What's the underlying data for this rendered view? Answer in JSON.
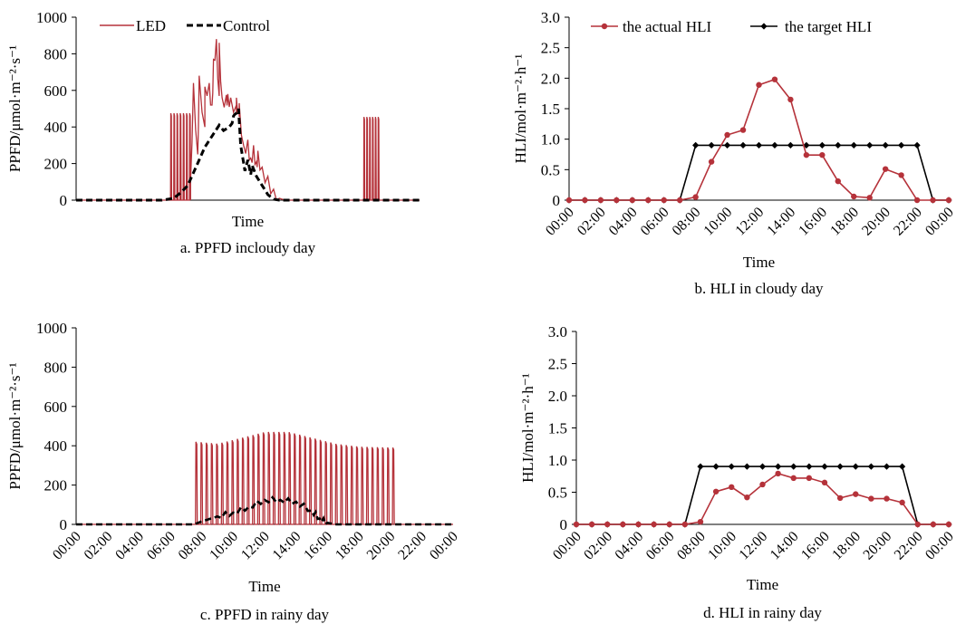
{
  "colors": {
    "led": "#b5323a",
    "control": "#000000",
    "actual": "#b5323a",
    "target": "#000000"
  },
  "chart_data": [
    {
      "id": "a",
      "type": "line",
      "caption": "a. PPFD incloudy day",
      "xlabel": "Time",
      "ylabel": "PPFD/μmol·m⁻²·s⁻¹",
      "ylim": [
        0,
        1000
      ],
      "yticks": [
        "0",
        "200",
        "400",
        "600",
        "800",
        "1000"
      ],
      "xticks": [],
      "x_range_hours": [
        0,
        24
      ],
      "legend": {
        "placement": "top-left",
        "entries": [
          "LED",
          "Control"
        ]
      },
      "series": [
        {
          "name": "LED",
          "style": "solid-red",
          "pulses": {
            "start": 6.6,
            "end": 8.0,
            "period": 0.22,
            "duty": 0.5,
            "top": 475,
            "bottom": 0
          },
          "pulses2": {
            "start": 20.1,
            "end": 21.2,
            "period": 0.2,
            "duty": 0.5,
            "top": 455,
            "bottom": 0
          },
          "values": [
            [
              0,
              0
            ],
            [
              6.0,
              0
            ],
            [
              6.6,
              8
            ],
            [
              7.2,
              20
            ],
            [
              8.0,
              110
            ],
            [
              8.5,
              250
            ],
            [
              9.0,
              400
            ],
            [
              9.5,
              520
            ],
            [
              10.0,
              570
            ],
            [
              10.5,
              575
            ],
            [
              10.8,
              560
            ],
            [
              11.2,
              520
            ],
            [
              11.4,
              500
            ],
            [
              11.7,
              300
            ],
            [
              12.2,
              230
            ],
            [
              12.6,
              210
            ],
            [
              13.0,
              180
            ],
            [
              13.4,
              130
            ],
            [
              13.8,
              60
            ],
            [
              14.2,
              10
            ],
            [
              14.6,
              0
            ],
            [
              24,
              0
            ]
          ],
          "peaks": [
            [
              8.2,
              640
            ],
            [
              8.6,
              680
            ],
            [
              9.0,
              620
            ],
            [
              9.3,
              640
            ],
            [
              9.6,
              770
            ],
            [
              9.8,
              880
            ],
            [
              10.0,
              860
            ],
            [
              10.2,
              560
            ],
            [
              10.6,
              580
            ],
            [
              11.2,
              560
            ],
            [
              11.4,
              530
            ],
            [
              12.0,
              330
            ],
            [
              12.4,
              300
            ],
            [
              12.7,
              270
            ]
          ]
        },
        {
          "name": "Control",
          "style": "dashed-black",
          "values": [
            [
              0,
              0
            ],
            [
              6.0,
              0
            ],
            [
              6.8,
              10
            ],
            [
              7.3,
              40
            ],
            [
              7.8,
              80
            ],
            [
              8.2,
              150
            ],
            [
              8.6,
              220
            ],
            [
              9.0,
              290
            ],
            [
              9.5,
              350
            ],
            [
              10.0,
              410
            ],
            [
              10.3,
              380
            ],
            [
              10.7,
              400
            ],
            [
              11.0,
              460
            ],
            [
              11.3,
              480
            ],
            [
              11.5,
              300
            ],
            [
              11.8,
              160
            ],
            [
              12.2,
              140
            ],
            [
              12.6,
              130
            ],
            [
              13.0,
              80
            ],
            [
              13.4,
              30
            ],
            [
              13.8,
              5
            ],
            [
              14.2,
              0
            ],
            [
              24,
              0
            ]
          ],
          "peaks": [
            [
              10.9,
              420
            ],
            [
              11.1,
              470
            ],
            [
              11.35,
              500
            ],
            [
              12.0,
              220
            ],
            [
              12.3,
              190
            ]
          ]
        }
      ]
    },
    {
      "id": "b",
      "type": "line",
      "caption": "b. HLI in cloudy day",
      "xlabel": "Time",
      "ylabel": "HLI/mol·m⁻²·h⁻¹",
      "ylim": [
        0,
        3.0
      ],
      "yticks": [
        "0",
        "0.5",
        "1.0",
        "1.5",
        "2.0",
        "2.5",
        "3.0"
      ],
      "xticks": [
        "00:00",
        "02:00",
        "04:00",
        "06:00",
        "08:00",
        "10:00",
        "12:00",
        "14:00",
        "16:00",
        "18:00",
        "20:00",
        "22:00",
        "00:00"
      ],
      "legend": {
        "placement": "top",
        "entries": [
          "the actual HLI",
          "the target HLI"
        ]
      },
      "series": [
        {
          "name": "the actual HLI",
          "values": [
            0,
            0,
            0,
            0,
            0,
            0,
            0,
            0,
            0.05,
            0.63,
            1.07,
            1.15,
            1.89,
            1.98,
            1.65,
            0.74,
            0.74,
            0.31,
            0.06,
            0.04,
            0.51,
            0.41,
            0,
            0,
            0
          ]
        },
        {
          "name": "the target HLI",
          "values": [
            0,
            0,
            0,
            0,
            0,
            0,
            0,
            0,
            0.9,
            0.9,
            0.9,
            0.9,
            0.9,
            0.9,
            0.9,
            0.9,
            0.9,
            0.9,
            0.9,
            0.9,
            0.9,
            0.9,
            0.9,
            0,
            0
          ]
        }
      ]
    },
    {
      "id": "c",
      "type": "line",
      "caption": "c. PPFD in rainy day",
      "xlabel": "Time",
      "ylabel": "PPFD/μmol·m⁻²·s⁻¹",
      "ylim": [
        0,
        1000
      ],
      "yticks": [
        "0",
        "200",
        "400",
        "600",
        "800",
        "1000"
      ],
      "xticks": [
        "00:00",
        "02:00",
        "04:00",
        "06:00",
        "08:00",
        "10:00",
        "12:00",
        "14:00",
        "16:00",
        "18:00",
        "20:00",
        "22:00",
        "00:00"
      ],
      "x_range_hours": [
        0,
        24
      ],
      "series": [
        {
          "name": "LED",
          "style": "solid-red",
          "pulses": {
            "start": 7.6,
            "end": 20.4,
            "period": 0.33,
            "duty": 0.5,
            "bottom": 0,
            "top_profile": [
              [
                7.6,
                420
              ],
              [
                9.0,
                410
              ],
              [
                10.5,
                440
              ],
              [
                12.0,
                470
              ],
              [
                13.5,
                470
              ],
              [
                15.0,
                440
              ],
              [
                16.5,
                410
              ],
              [
                18.0,
                395
              ],
              [
                20.4,
                390
              ]
            ]
          }
        },
        {
          "name": "Control",
          "style": "dashed-black",
          "values": [
            [
              0,
              0
            ],
            [
              7.5,
              0
            ],
            [
              8.0,
              15
            ],
            [
              9.0,
              40
            ],
            [
              10.0,
              60
            ],
            [
              11.0,
              90
            ],
            [
              12.0,
              125
            ],
            [
              13.0,
              125
            ],
            [
              14.0,
              115
            ],
            [
              15.0,
              70
            ],
            [
              15.5,
              30
            ],
            [
              16.0,
              8
            ],
            [
              16.5,
              0
            ],
            [
              24,
              0
            ]
          ],
          "ripple": 25
        }
      ]
    },
    {
      "id": "d",
      "type": "line",
      "caption": "d. HLI in rainy day",
      "xlabel": "Time",
      "ylabel": "HLI/mol·m⁻²·h⁻¹",
      "ylim": [
        0,
        3.0
      ],
      "yticks": [
        "0",
        "0.5",
        "1.0",
        "1.5",
        "2.0",
        "2.5",
        "3.0"
      ],
      "xticks": [
        "00:00",
        "02:00",
        "04:00",
        "06:00",
        "08:00",
        "10:00",
        "12:00",
        "14:00",
        "16:00",
        "18:00",
        "20:00",
        "22:00",
        "00:00"
      ],
      "series": [
        {
          "name": "the actual HLI",
          "values": [
            0,
            0,
            0,
            0,
            0,
            0,
            0,
            0,
            0.04,
            0.51,
            0.58,
            0.42,
            0.62,
            0.79,
            0.72,
            0.72,
            0.65,
            0.41,
            0.47,
            0.4,
            0.4,
            0.34,
            0,
            0,
            0
          ]
        },
        {
          "name": "the target HLI",
          "values": [
            0,
            0,
            0,
            0,
            0,
            0,
            0,
            0,
            0.9,
            0.9,
            0.9,
            0.9,
            0.9,
            0.9,
            0.9,
            0.9,
            0.9,
            0.9,
            0.9,
            0.9,
            0.9,
            0.9,
            0,
            0,
            0
          ]
        }
      ]
    }
  ]
}
